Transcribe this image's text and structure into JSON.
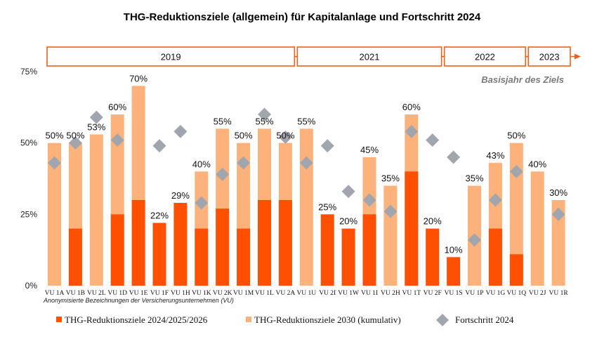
{
  "chart_data": {
    "type": "bar",
    "title": "THG-Reduktionsziele (allgemein) für Kapitalanlage und Fortschritt 2024",
    "subtitle": "Basisjahr des Ziels",
    "xlabel": "Anonymisierte Bezeichnungen der Versicherungsunternehmen (VU)",
    "ylabel": "",
    "ylim": [
      0,
      75
    ],
    "yticks": [
      0,
      25,
      50,
      75
    ],
    "ytick_labels": [
      "0%",
      "25%",
      "50%",
      "75%"
    ],
    "categories": [
      "VU 1A",
      "VU 1B",
      "VU 2L",
      "VU 1D",
      "VU 1E",
      "VU 1F",
      "VU 1H",
      "VU 1K",
      "VU 2K",
      "VU 1M",
      "VU 1L",
      "VU 2A",
      "VU 1U",
      "VU 2I",
      "VU 1W",
      "VU 1I",
      "VU 2H",
      "VU 1T",
      "VU 2F",
      "VU 1S",
      "VU 1P",
      "VU 1G",
      "VU 1Q",
      "VU 2J",
      "VU 1R"
    ],
    "series": [
      {
        "name": "THG-Reduktionsziele 2024/2025/2026",
        "color": "#fe5000",
        "values": [
          null,
          20,
          null,
          25,
          30,
          22,
          29,
          20,
          27,
          20,
          30,
          30,
          null,
          25,
          20,
          25,
          null,
          40,
          20,
          10,
          null,
          20,
          11,
          null,
          null
        ]
      },
      {
        "name": "THG-Reduktionsziele 2030 (kumulativ)",
        "color": "#fdb27c",
        "values": [
          50,
          50,
          53,
          60,
          70,
          null,
          null,
          40,
          55,
          50,
          55,
          50,
          55,
          null,
          null,
          45,
          35,
          60,
          null,
          null,
          35,
          43,
          50,
          40,
          30
        ]
      },
      {
        "name": "Fortschritt 2024",
        "color": "#a0a5ae",
        "values": [
          43,
          50,
          59,
          51,
          null,
          49,
          54,
          29,
          39,
          43,
          60,
          52,
          43,
          49,
          33,
          30,
          26,
          54,
          51,
          45,
          16,
          30,
          40,
          null,
          25
        ]
      }
    ],
    "data_labels": [
      "50%",
      "50%",
      "53%",
      "60%",
      "70%",
      "22%",
      "29%",
      "40%",
      "55%",
      "50%",
      "55%",
      "50%",
      "55%",
      "25%",
      "20%",
      "45%",
      "35%",
      "60%",
      "20%",
      "10%",
      "35%",
      "43%",
      "50%",
      "40%",
      "30%"
    ],
    "base_years": [
      {
        "label": "2019",
        "first": 0,
        "last": 11
      },
      {
        "label": "2021",
        "first": 12,
        "last": 18
      },
      {
        "label": "2022",
        "first": 19,
        "last": 22
      },
      {
        "label": "2023",
        "first": 23,
        "last": 24
      }
    ]
  },
  "colors": {
    "accent": "#e8621f",
    "dark_orange": "#fe5000",
    "light_orange": "#fdb27c",
    "diamond": "#a0a5ae"
  }
}
